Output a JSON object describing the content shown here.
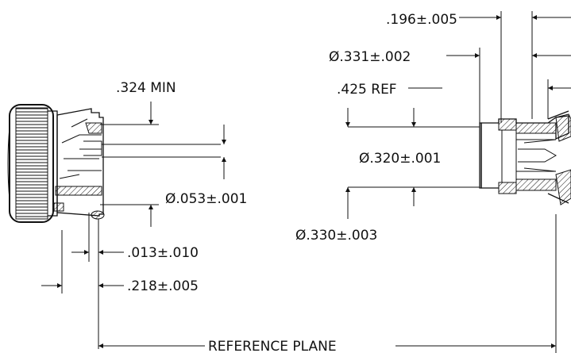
{
  "dimensions": {
    "length_196": ".196±.005",
    "dia_331": "Ø.331±.002",
    "ref_425": ".425 REF",
    "min_324": ".324 MIN",
    "dia_320": "Ø.320±.001",
    "dia_053": "Ø.053±.001",
    "dia_330": "Ø.330±.003",
    "len_013": ".013±.010",
    "len_218": ".218±.005"
  },
  "labels": {
    "reference_plane": "REFERENCE PLANE"
  },
  "colors": {
    "ink": "#111111",
    "paper": "#ffffff"
  }
}
